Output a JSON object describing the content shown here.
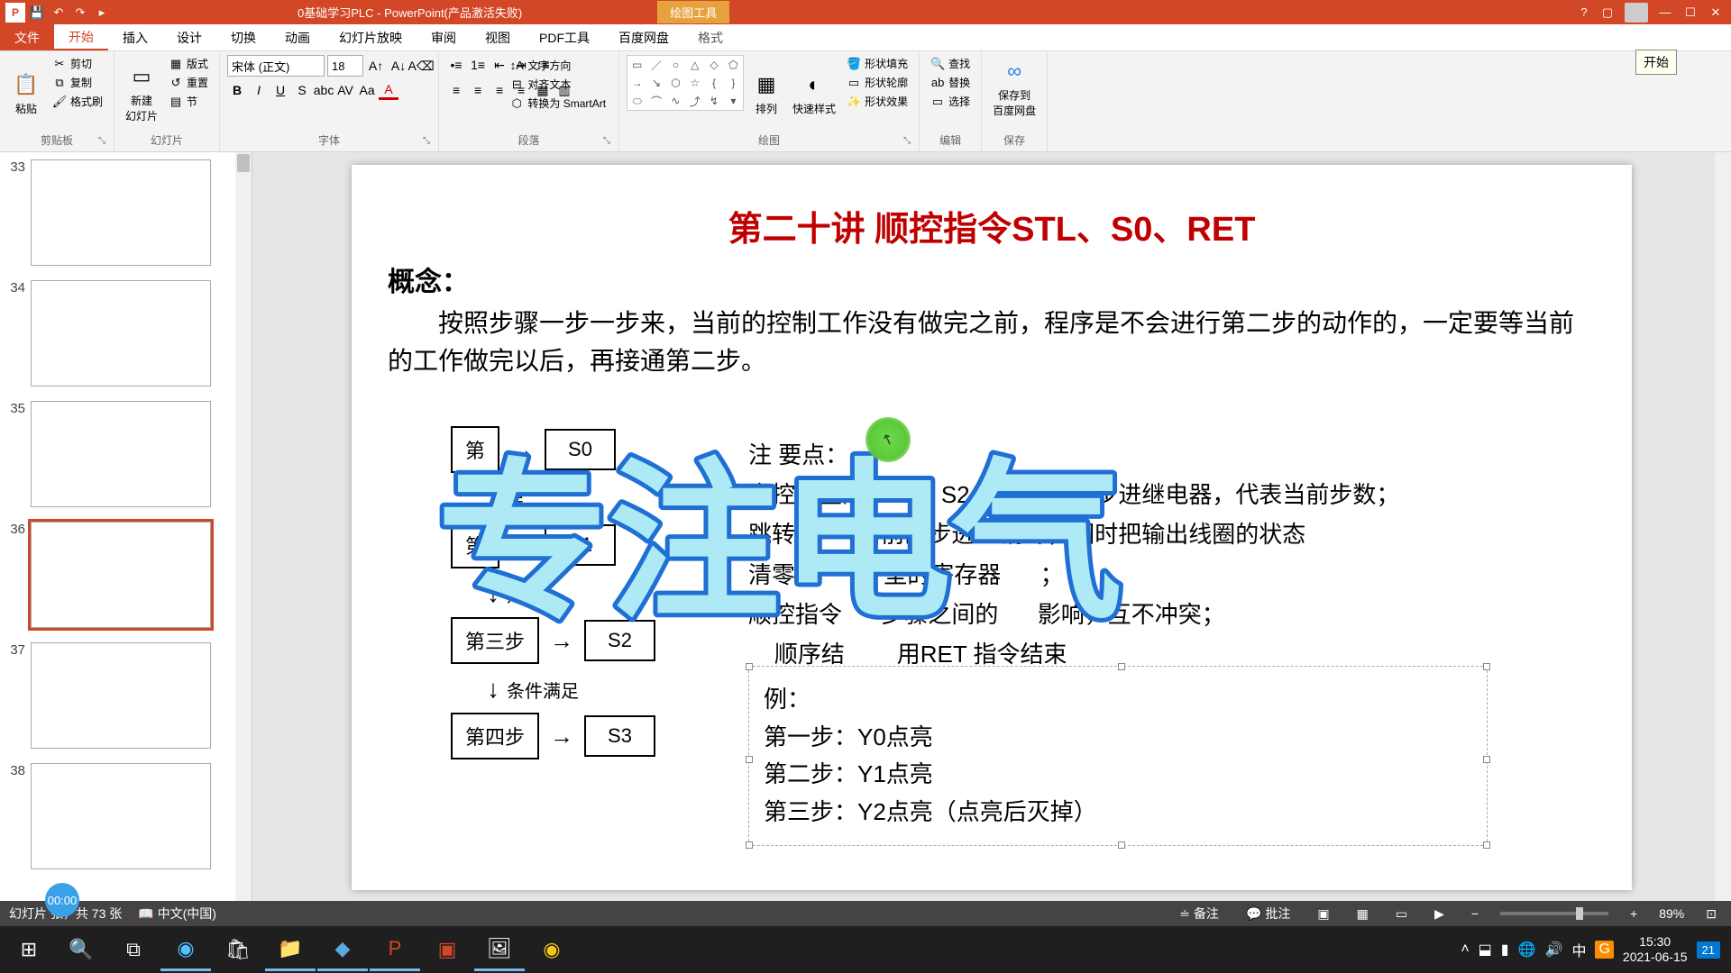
{
  "titlebar": {
    "doc_title": "0基础学习PLC - PowerPoint(产品激活失败)",
    "contextual_tab": "绘图工具",
    "tooltip": "开始"
  },
  "tabs": {
    "file": "文件",
    "items": [
      "开始",
      "插入",
      "设计",
      "切换",
      "动画",
      "幻灯片放映",
      "审阅",
      "视图",
      "PDF工具",
      "百度网盘",
      "格式"
    ],
    "active_index": 0
  },
  "ribbon": {
    "clipboard": {
      "label": "剪贴板",
      "paste": "粘贴",
      "cut": "剪切",
      "copy": "复制",
      "format_painter": "格式刷"
    },
    "slides": {
      "label": "幻灯片",
      "new_slide": "新建\n幻灯片",
      "layout": "版式",
      "reset": "重置",
      "section": "节"
    },
    "font": {
      "label": "字体",
      "name": "宋体 (正文)",
      "size": "18"
    },
    "paragraph": {
      "label": "段落",
      "text_direction": "文字方向",
      "align_text": "对齐文本",
      "smartart": "转换为 SmartArt"
    },
    "drawing": {
      "label": "绘图",
      "arrange": "排列",
      "quick_styles": "快速样式",
      "shape_fill": "形状填充",
      "shape_outline": "形状轮廓",
      "shape_effects": "形状效果"
    },
    "editing": {
      "label": "编辑",
      "find": "查找",
      "replace": "替换",
      "select": "选择"
    },
    "save": {
      "label": "保存",
      "save_to": "保存到\n百度网盘"
    }
  },
  "thumbs": {
    "items": [
      {
        "num": "33"
      },
      {
        "num": "34"
      },
      {
        "num": "35"
      },
      {
        "num": "36"
      },
      {
        "num": "37"
      },
      {
        "num": "38"
      }
    ],
    "active_index": 3
  },
  "slide": {
    "title": "第二十讲 顺控指令STL、S0、RET",
    "concept_label": "概念：",
    "concept_text": "按照步骤一步一步来，当前的控制工作没有做完之前，程序是不会进行第二步的动作的，一定要等当前的工作做完以后，再接通第二步。",
    "flow": {
      "steps": [
        "第",
        "第",
        "第三步",
        "第四步"
      ],
      "states": [
        "S0",
        "S1",
        "S2",
        "S3"
      ],
      "cond": "条件满足",
      "cond_short": "足"
    },
    "points": {
      "header": "注      要点：",
      "p1_a": "字控制里的",
      "p1_b": "、S2、S3为顺",
      "p1_c": "步进继电器，代表当前步数；",
      "p2_a": "跳转下",
      "p2_b": "当前的步进",
      "p2_c": "清零，同时把输出线圈的状态",
      "p3_a": "清零，",
      "p3_b": "型的寄存器",
      "p3_c": "；",
      "p4_a": "顺控指令",
      "p4_b": "步骤之间的",
      "p4_c": "影响，互不冲突；",
      "p5_a": "顺序结",
      "p5_b": "用RET 指令结束"
    },
    "example": {
      "e0": "例：",
      "e1": "第一步：Y0点亮",
      "e2": "第二步：Y1点亮",
      "e3": "第三步：Y2点亮（点亮后灭掉）"
    },
    "watermark": "专注电气"
  },
  "statusbar": {
    "slide_info": "幻灯片        张，共 73 张",
    "lang": "中文(中国)",
    "notes": "备注",
    "comments": "批注",
    "zoom": "89%"
  },
  "rec_time": "00:00",
  "tray": {
    "time": "15:30",
    "date": "2021-06-15",
    "notif": "21"
  }
}
